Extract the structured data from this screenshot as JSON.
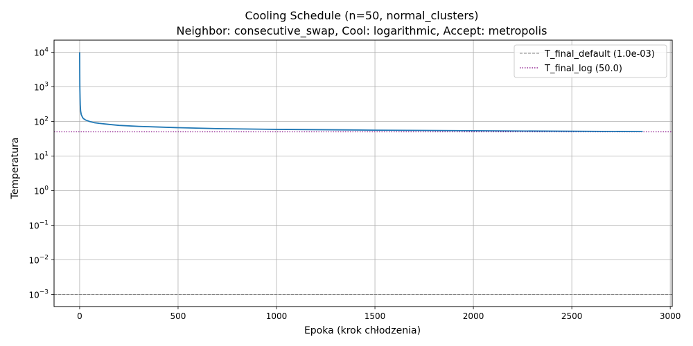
{
  "chart_data": {
    "type": "line",
    "title": "Cooling Schedule (n=50, normal_clusters)",
    "subtitle": "Neighbor: consecutive_swap, Cool: logarithmic, Accept: metropolis",
    "xlabel": "Epoka (krok chłodzenia)",
    "ylabel": "Temperatura",
    "xlim": [
      -130,
      3010
    ],
    "ylim_log10": [
      -3.35,
      4.35
    ],
    "yscale": "log",
    "grid": true,
    "legend_position": "top-right",
    "x_ticks": [
      0,
      500,
      1000,
      1500,
      2000,
      2500,
      3000
    ],
    "y_ticks": [
      {
        "base": "10",
        "exp": "4",
        "value": 10000
      },
      {
        "base": "10",
        "exp": "3",
        "value": 1000
      },
      {
        "base": "10",
        "exp": "2",
        "value": 100
      },
      {
        "base": "10",
        "exp": "1",
        "value": 10
      },
      {
        "base": "10",
        "exp": "0",
        "value": 1
      },
      {
        "base": "10",
        "exp": "−1",
        "value": 0.1
      },
      {
        "base": "10",
        "exp": "−2",
        "value": 0.01
      },
      {
        "base": "10",
        "exp": "−3",
        "value": 0.001
      }
    ],
    "series": [
      {
        "color": "#1f77b4",
        "x": [
          0,
          1,
          2,
          3,
          5,
          8,
          10,
          15,
          20,
          30,
          50,
          75,
          100,
          150,
          200,
          300,
          400,
          500,
          700,
          1000,
          1500,
          2000,
          2500,
          2860
        ],
        "y": [
          10000,
          1000,
          500,
          300,
          200,
          160,
          150,
          130,
          120,
          110,
          100,
          92,
          88,
          82,
          77,
          72,
          69,
          66,
          62,
          59,
          56,
          54,
          52,
          51
        ]
      }
    ],
    "reference_lines": [
      {
        "name": "T_final_default (1.0e-03)",
        "value": 0.001,
        "color": "#808080",
        "style": "dashed"
      },
      {
        "name": "T_final_log (50.0)",
        "value": 50,
        "color": "#800080",
        "style": "dotted"
      }
    ]
  }
}
